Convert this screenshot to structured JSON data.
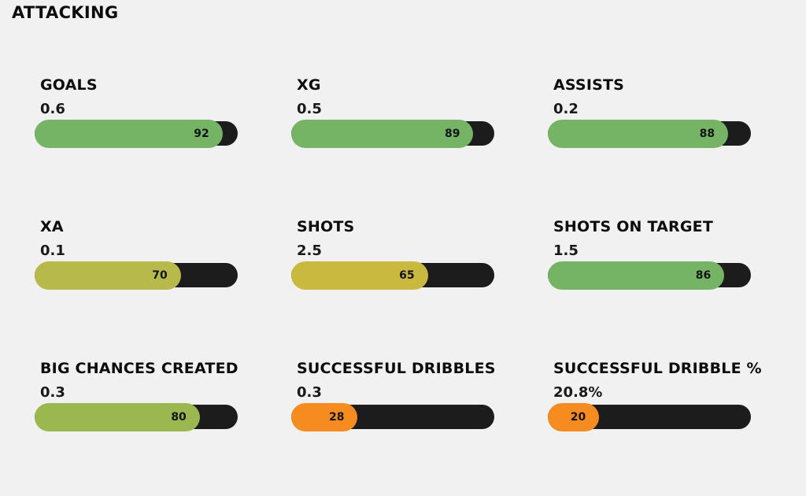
{
  "page": {
    "title": "ATTACKING",
    "background_color": "#f1f1f1"
  },
  "bar_style": {
    "track_color": "#1c1c1c",
    "score_text_color": "#141414"
  },
  "stats": [
    {
      "name": "GOALS",
      "value": "0.6",
      "score": 92,
      "color": "#74b464"
    },
    {
      "name": "XG",
      "value": "0.5",
      "score": 89,
      "color": "#74b464"
    },
    {
      "name": "ASSISTS",
      "value": "0.2",
      "score": 88,
      "color": "#74b464"
    },
    {
      "name": "XA",
      "value": "0.1",
      "score": 70,
      "color": "#b7ba4a"
    },
    {
      "name": "SHOTS",
      "value": "2.5",
      "score": 65,
      "color": "#c9b93f"
    },
    {
      "name": "SHOTS ON TARGET",
      "value": "1.5",
      "score": 86,
      "color": "#74b464"
    },
    {
      "name": "BIG CHANCES CREATED",
      "value": "0.3",
      "score": 80,
      "color": "#9ab750"
    },
    {
      "name": "SUCCESSFUL DRIBBLES",
      "value": "0.3",
      "score": 28,
      "color": "#f68b1f"
    },
    {
      "name": "SUCCESSFUL DRIBBLE %",
      "value": "20.8%",
      "score": 20,
      "color": "#f68b1f"
    }
  ],
  "chart_data": {
    "type": "bar",
    "title": "ATTACKING",
    "orientation": "horizontal",
    "categories": [
      "GOALS",
      "XG",
      "ASSISTS",
      "XA",
      "SHOTS",
      "SHOTS ON TARGET",
      "BIG CHANCES CREATED",
      "SUCCESSFUL DRIBBLES",
      "SUCCESSFUL DRIBBLE %"
    ],
    "series": [
      {
        "name": "stat value",
        "values": [
          "0.6",
          "0.5",
          "0.2",
          "0.1",
          "2.5",
          "1.5",
          "0.3",
          "0.3",
          "20.8%"
        ]
      },
      {
        "name": "rating (bar fill, 0-100)",
        "values": [
          92,
          89,
          88,
          70,
          65,
          86,
          80,
          28,
          20
        ]
      }
    ],
    "xlim": [
      0,
      100
    ],
    "grid": false,
    "legend": false,
    "bar_colors": [
      "#74b464",
      "#74b464",
      "#74b464",
      "#b7ba4a",
      "#c9b93f",
      "#74b464",
      "#9ab750",
      "#f68b1f",
      "#f68b1f"
    ],
    "layout": "3x3 grid of rounded pill bars on dark tracks, value label inside filled portion"
  }
}
